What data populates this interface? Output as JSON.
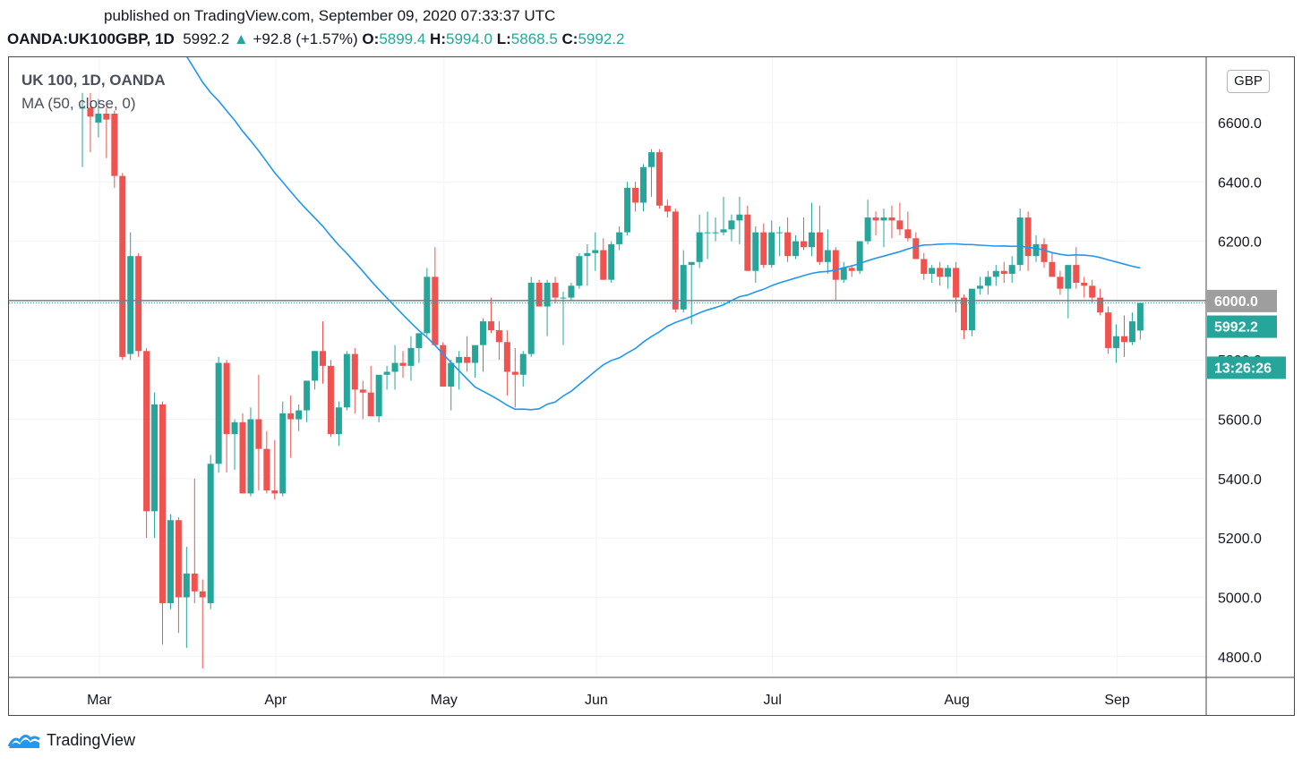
{
  "published": "published on TradingView.com, September 09, 2020 07:33:37 UTC",
  "header": {
    "symbol": "OANDA:UK100GBP, 1D",
    "last": "5992.2",
    "arrow": "▲",
    "change": "+92.8 (+1.57%)",
    "o_label": "O:",
    "o_value": "5899.4",
    "h_label": "H:",
    "h_value": "5994.0",
    "l_label": "L:",
    "l_value": "5868.5",
    "c_label": "C:",
    "c_value": "5992.2"
  },
  "legend": {
    "title": "UK 100, 1D, OANDA",
    "ma": "MA (50, close, 0)"
  },
  "currency": "GBP",
  "footer": {
    "brand": "TradingView",
    "icon": "tradingview-logo-icon"
  },
  "colors": {
    "up": "#26a69a",
    "down": "#ef5350",
    "ma": "#2196f3",
    "axis_tag": "#9e9e9e"
  },
  "chart_data": {
    "type": "candlestick",
    "y_ticks": [
      4800,
      5000,
      5200,
      5400,
      5600,
      5800,
      6000,
      6200,
      6400,
      6600
    ],
    "y_tick_labels": [
      "4800.0",
      "5000.0",
      "5200.0",
      "5400.0",
      "5600.0",
      "5800.0",
      "6000.0",
      "6200.0",
      "6400.0",
      "6600.0"
    ],
    "ylim": [
      4730,
      6820
    ],
    "x_months": [
      {
        "label": "Mar",
        "index": 1
      },
      {
        "label": "Apr",
        "index": 23
      },
      {
        "label": "May",
        "index": 44
      },
      {
        "label": "Jun",
        "index": 63
      },
      {
        "label": "Jul",
        "index": 85
      },
      {
        "label": "Aug",
        "index": 108
      },
      {
        "label": "Sep",
        "index": 128
      }
    ],
    "price_tags": [
      {
        "label": "6000.0",
        "value": 6000,
        "kind": "level"
      },
      {
        "label": "5992.2",
        "value": 5992,
        "kind": "last"
      },
      {
        "label": "13:26:26",
        "value": 5932,
        "kind": "countdown"
      }
    ],
    "ohlc": [
      [
        6650,
        6700,
        6450,
        6650
      ],
      [
        6650,
        6700,
        6500,
        6620
      ],
      [
        6600,
        6680,
        6550,
        6630
      ],
      [
        6630,
        6650,
        6480,
        6610
      ],
      [
        6630,
        6640,
        6380,
        6420
      ],
      [
        6420,
        6430,
        5800,
        5810
      ],
      [
        5820,
        6230,
        5800,
        6150
      ],
      [
        6150,
        6160,
        5810,
        5830
      ],
      [
        5830,
        5840,
        5200,
        5290
      ],
      [
        5290,
        5690,
        5200,
        5650
      ],
      [
        5650,
        5660,
        4840,
        4980
      ],
      [
        4980,
        5280,
        4960,
        5260
      ],
      [
        5260,
        5270,
        4880,
        5000
      ],
      [
        5000,
        5170,
        4830,
        5080
      ],
      [
        5080,
        5400,
        4980,
        5020
      ],
      [
        5020,
        5060,
        4760,
        5000
      ],
      [
        4980,
        5480,
        4960,
        5450
      ],
      [
        5450,
        5810,
        5420,
        5790
      ],
      [
        5790,
        5800,
        5420,
        5550
      ],
      [
        5550,
        5600,
        5430,
        5590
      ],
      [
        5590,
        5620,
        5350,
        5350
      ],
      [
        5350,
        5640,
        5340,
        5600
      ],
      [
        5600,
        5750,
        5360,
        5500
      ],
      [
        5500,
        5560,
        5350,
        5360
      ],
      [
        5360,
        5530,
        5330,
        5350
      ],
      [
        5350,
        5660,
        5340,
        5620
      ],
      [
        5620,
        5680,
        5470,
        5600
      ],
      [
        5600,
        5650,
        5560,
        5630
      ],
      [
        5630,
        5730,
        5590,
        5730
      ],
      [
        5730,
        5830,
        5700,
        5830
      ],
      [
        5830,
        5930,
        5720,
        5780
      ],
      [
        5780,
        5800,
        5540,
        5550
      ],
      [
        5550,
        5660,
        5510,
        5640
      ],
      [
        5640,
        5830,
        5630,
        5820
      ],
      [
        5820,
        5840,
        5620,
        5700
      ],
      [
        5700,
        5730,
        5600,
        5690
      ],
      [
        5690,
        5780,
        5620,
        5610
      ],
      [
        5610,
        5740,
        5590,
        5750
      ],
      [
        5750,
        5780,
        5700,
        5760
      ],
      [
        5760,
        5850,
        5700,
        5790
      ],
      [
        5790,
        5830,
        5740,
        5780
      ],
      [
        5780,
        5880,
        5730,
        5840
      ],
      [
        5840,
        5890,
        5790,
        5890
      ],
      [
        5890,
        6110,
        5880,
        6080
      ],
      [
        6080,
        6180,
        5850,
        5850
      ],
      [
        5850,
        5860,
        5710,
        5710
      ],
      [
        5710,
        5800,
        5630,
        5790
      ],
      [
        5790,
        5830,
        5700,
        5810
      ],
      [
        5810,
        5880,
        5760,
        5790
      ],
      [
        5790,
        5840,
        5740,
        5850
      ],
      [
        5850,
        5940,
        5760,
        5930
      ],
      [
        5930,
        6010,
        5890,
        5900
      ],
      [
        5900,
        5930,
        5800,
        5860
      ],
      [
        5860,
        5900,
        5680,
        5760
      ],
      [
        5760,
        5840,
        5640,
        5750
      ],
      [
        5750,
        5830,
        5710,
        5820
      ],
      [
        5820,
        6080,
        5810,
        6060
      ],
      [
        6060,
        6070,
        5980,
        5980
      ],
      [
        5980,
        6070,
        5880,
        6060
      ],
      [
        6060,
        6080,
        5990,
        6010
      ],
      [
        6010,
        6030,
        5850,
        6010
      ],
      [
        6010,
        6060,
        6000,
        6050
      ],
      [
        6050,
        6160,
        6040,
        6150
      ],
      [
        6150,
        6190,
        6050,
        6160
      ],
      [
        6160,
        6230,
        6100,
        6170
      ],
      [
        6170,
        6210,
        6070,
        6070
      ],
      [
        6070,
        6200,
        6060,
        6190
      ],
      [
        6190,
        6250,
        6170,
        6230
      ],
      [
        6230,
        6400,
        6220,
        6380
      ],
      [
        6380,
        6400,
        6300,
        6330
      ],
      [
        6330,
        6460,
        6300,
        6450
      ],
      [
        6450,
        6510,
        6350,
        6500
      ],
      [
        6500,
        6510,
        6310,
        6320
      ],
      [
        6320,
        6340,
        6280,
        6300
      ],
      [
        6300,
        6310,
        5960,
        5970
      ],
      [
        5970,
        6170,
        5960,
        6120
      ],
      [
        6120,
        6130,
        5920,
        6130
      ],
      [
        6130,
        6290,
        6110,
        6230
      ],
      [
        6230,
        6300,
        6140,
        6230
      ],
      [
        6230,
        6280,
        6200,
        6230
      ],
      [
        6230,
        6350,
        6220,
        6240
      ],
      [
        6240,
        6290,
        6200,
        6270
      ],
      [
        6270,
        6350,
        6190,
        6290
      ],
      [
        6290,
        6320,
        6100,
        6100
      ],
      [
        6100,
        6250,
        6060,
        6230
      ],
      [
        6230,
        6260,
        6110,
        6120
      ],
      [
        6120,
        6270,
        6110,
        6230
      ],
      [
        6230,
        6250,
        6150,
        6230
      ],
      [
        6230,
        6280,
        6130,
        6150
      ],
      [
        6150,
        6220,
        6140,
        6200
      ],
      [
        6200,
        6280,
        6170,
        6180
      ],
      [
        6180,
        6330,
        6150,
        6230
      ],
      [
        6230,
        6320,
        6120,
        6130
      ],
      [
        6130,
        6240,
        6090,
        6170
      ],
      [
        6170,
        6180,
        6000,
        6070
      ],
      [
        6070,
        6130,
        6060,
        6110
      ],
      [
        6110,
        6120,
        6080,
        6100
      ],
      [
        6100,
        6200,
        6090,
        6200
      ],
      [
        6200,
        6340,
        6190,
        6280
      ],
      [
        6280,
        6300,
        6220,
        6270
      ],
      [
        6270,
        6310,
        6180,
        6280
      ],
      [
        6280,
        6320,
        6210,
        6270
      ],
      [
        6270,
        6330,
        6220,
        6240
      ],
      [
        6240,
        6300,
        6200,
        6210
      ],
      [
        6210,
        6230,
        6140,
        6140
      ],
      [
        6140,
        6160,
        6070,
        6090
      ],
      [
        6090,
        6120,
        6060,
        6110
      ],
      [
        6110,
        6130,
        6050,
        6080
      ],
      [
        6080,
        6120,
        6040,
        6110
      ],
      [
        6110,
        6130,
        5960,
        6010
      ],
      [
        6010,
        6020,
        5870,
        5900
      ],
      [
        5900,
        6030,
        5880,
        6040
      ],
      [
        6040,
        6080,
        6020,
        6050
      ],
      [
        6050,
        6100,
        6020,
        6080
      ],
      [
        6080,
        6120,
        6050,
        6100
      ],
      [
        6100,
        6130,
        6060,
        6090
      ],
      [
        6090,
        6150,
        6060,
        6120
      ],
      [
        6120,
        6310,
        6100,
        6280
      ],
      [
        6280,
        6300,
        6100,
        6150
      ],
      [
        6150,
        6220,
        6130,
        6190
      ],
      [
        6190,
        6210,
        6110,
        6130
      ],
      [
        6130,
        6160,
        6090,
        6080
      ],
      [
        6080,
        6100,
        6020,
        6040
      ],
      [
        6040,
        6110,
        5940,
        6120
      ],
      [
        6120,
        6180,
        6040,
        6060
      ],
      [
        6060,
        6080,
        6010,
        6050
      ],
      [
        6050,
        6070,
        5990,
        6010
      ],
      [
        6010,
        6040,
        5950,
        5960
      ],
      [
        5960,
        5980,
        5820,
        5840
      ],
      [
        5840,
        5920,
        5790,
        5880
      ],
      [
        5880,
        5950,
        5810,
        5860
      ],
      [
        5860,
        5960,
        5850,
        5930
      ],
      [
        5899,
        5994,
        5868,
        5992
      ]
    ],
    "ma_period": 50
  }
}
